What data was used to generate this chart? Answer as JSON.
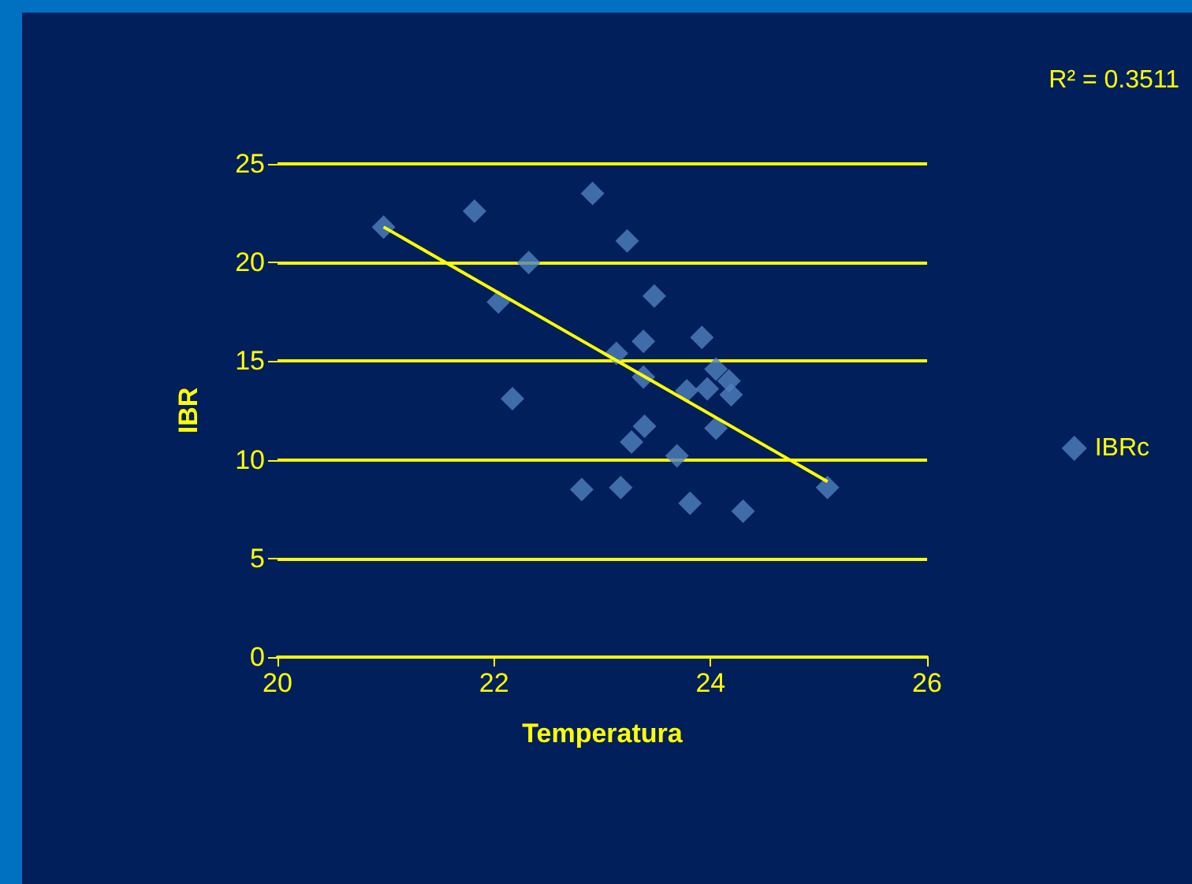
{
  "chart_data": {
    "type": "scatter",
    "xlabel": "Temperatura",
    "ylabel": "IBR",
    "annotations": [
      "R² = 0.3511"
    ],
    "xlim": [
      20,
      26
    ],
    "xticks": [
      20,
      22,
      24,
      26
    ],
    "ylim": [
      0,
      25
    ],
    "yticks": [
      0,
      5,
      10,
      15,
      20,
      25
    ],
    "grid": "y",
    "legend": "right",
    "marker": "diamond",
    "series": [
      {
        "name": "IBRc",
        "color": "#4f81bd",
        "x": [
          20.98,
          21.82,
          22.91,
          23.23,
          22.32,
          22.04,
          23.48,
          23.92,
          23.38,
          23.13,
          23.38,
          24.05,
          24.17,
          23.78,
          23.97,
          24.19,
          22.17,
          23.39,
          23.27,
          24.05,
          23.69,
          22.81,
          23.17,
          23.81,
          24.3,
          25.08
        ],
        "values": [
          21.8,
          22.6,
          23.5,
          21.1,
          20,
          18,
          18.3,
          16.2,
          16,
          15.4,
          14.2,
          14.6,
          14,
          13.5,
          13.6,
          13.3,
          13.1,
          11.7,
          10.9,
          11.6,
          10.2,
          8.5,
          8.6,
          7.8,
          7.4,
          8.6
        ]
      },
      {
        "type": "line",
        "marker": "none",
        "color": "#ffff00",
        "x": [
          20.98,
          25.08
        ],
        "values": [
          21.8,
          8.9
        ]
      }
    ]
  }
}
